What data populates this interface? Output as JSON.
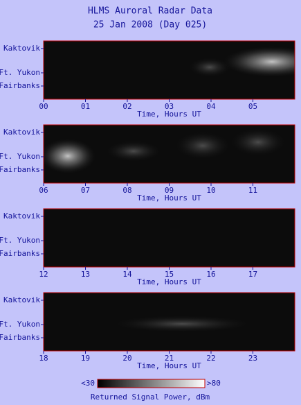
{
  "header": {
    "title": "HLMS Auroral Radar Data",
    "subtitle": "25 Jan 2008 (Day 025)"
  },
  "chart_data": [
    {
      "type": "radargram",
      "x_label": "Time, Hours UT",
      "xlim": [
        0,
        6
      ],
      "xticks": [
        {
          "value": 0,
          "label": "00"
        },
        {
          "value": 1,
          "label": "01"
        },
        {
          "value": 2,
          "label": "02"
        },
        {
          "value": 3,
          "label": "03"
        },
        {
          "value": 4,
          "label": "04"
        },
        {
          "value": 5,
          "label": "05"
        }
      ],
      "stations": [
        "Kaktovik",
        "Ft. Yukon",
        "Fairbanks"
      ]
    },
    {
      "type": "radargram",
      "x_label": "Time, Hours UT",
      "xlim": [
        6,
        12
      ],
      "xticks": [
        {
          "value": 6,
          "label": "06"
        },
        {
          "value": 7,
          "label": "07"
        },
        {
          "value": 8,
          "label": "08"
        },
        {
          "value": 9,
          "label": "09"
        },
        10,
        11
      ],
      "stations": [
        "Kaktovik",
        "Ft. Yukon",
        "Fairbanks"
      ]
    },
    {
      "type": "radargram",
      "x_label": "Time, Hours UT",
      "xlim": [
        12,
        18
      ],
      "xticks": [
        12,
        13,
        14,
        15,
        16,
        17
      ],
      "stations": [
        "Kaktovik",
        "Ft. Yukon",
        "Fairbanks"
      ]
    },
    {
      "type": "radargram",
      "x_label": "Time, Hours UT",
      "xlim": [
        18,
        24
      ],
      "xticks": [
        18,
        19,
        20,
        21,
        22,
        23
      ],
      "stations": [
        "Kaktovik",
        "Ft. Yukon",
        "Fairbanks"
      ]
    }
  ],
  "colorbar": {
    "min_label": "<30",
    "max_label": ">80",
    "label": "Returned Signal Power, dBm"
  }
}
